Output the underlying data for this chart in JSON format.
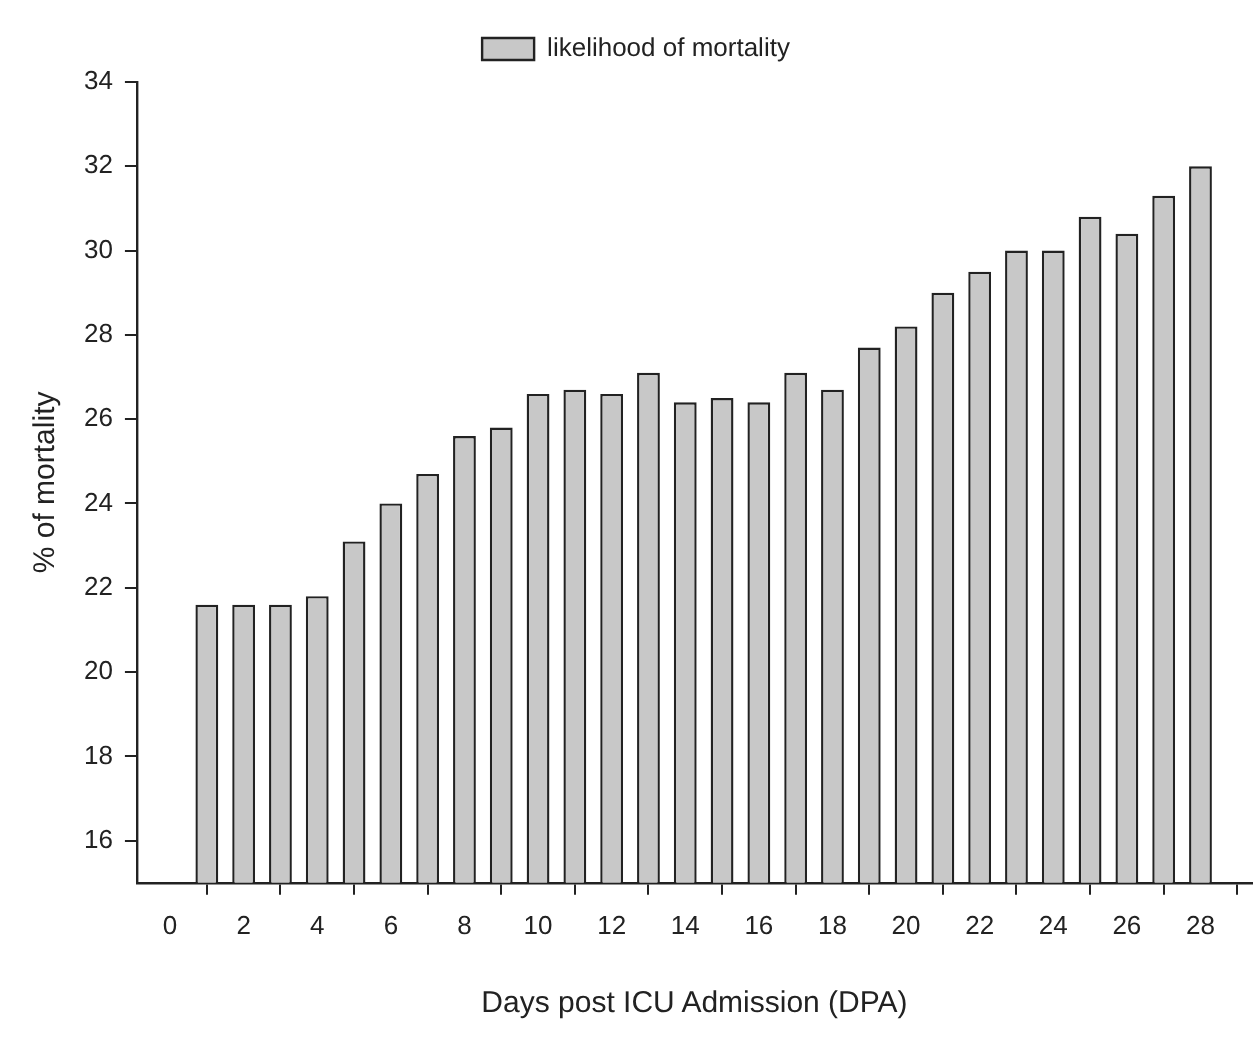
{
  "chart_data": {
    "type": "bar",
    "xlabel": "Days post ICU Admission (DPA)",
    "ylabel": "% of mortality",
    "x": [
      1,
      2,
      3,
      4,
      5,
      6,
      7,
      8,
      9,
      10,
      11,
      12,
      13,
      14,
      15,
      16,
      17,
      18,
      19,
      20,
      21,
      22,
      23,
      24,
      25,
      26,
      27,
      28
    ],
    "series": [
      {
        "name": "likelihood of mortality",
        "color": "#c8c8c8",
        "values": [
          21.6,
          21.6,
          21.6,
          21.8,
          23.1,
          24.0,
          24.7,
          25.6,
          25.8,
          26.6,
          26.7,
          26.6,
          27.1,
          26.4,
          26.5,
          26.4,
          27.1,
          26.7,
          27.7,
          28.2,
          29.0,
          29.5,
          30.0,
          30.0,
          30.8,
          30.4,
          31.3,
          32.0
        ]
      }
    ],
    "xlim": [
      -0.9,
      29.4
    ],
    "xticks": [
      0,
      2,
      4,
      6,
      8,
      10,
      12,
      14,
      16,
      18,
      20,
      22,
      24,
      26,
      28
    ],
    "ylim": [
      15,
      34
    ],
    "yticks": [
      16,
      18,
      20,
      22,
      24,
      26,
      28,
      30,
      32,
      34
    ],
    "grid": false,
    "legend": "top"
  }
}
